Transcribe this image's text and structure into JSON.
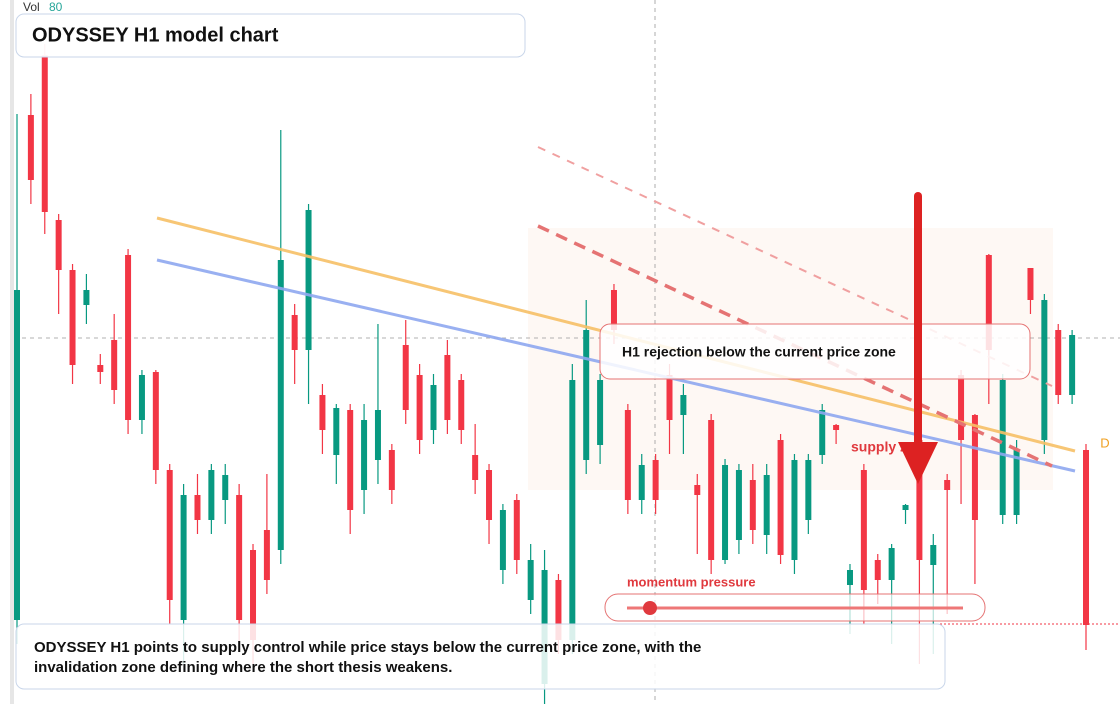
{
  "chart_data": {
    "type": "candlestick",
    "title": "ODYSSEY H1 model chart",
    "volume_label": "Vol",
    "volume_value": 80,
    "annotation": "H1 rejection below the current price zone",
    "zone_label": "supply zone",
    "momentum_label": "momentum pressure",
    "marker": "D",
    "caption": "ODYSSEY H1 points to supply control while price stays below the current price zone, with the invalidation zone defining where the short thesis weakens.",
    "up_color": "#089981",
    "down_color": "#f23645",
    "ylim": [
      0,
      704
    ],
    "open": [
      84,
      589,
      649,
      484,
      434,
      399,
      339,
      364,
      449,
      284,
      332,
      234,
      84,
      209,
      184,
      204,
      209,
      154,
      174,
      154,
      389,
      354,
      309,
      249,
      294,
      214,
      244,
      254,
      359,
      329,
      274,
      349,
      324,
      249,
      234,
      134,
      204,
      104,
      20,
      124,
      64,
      244,
      259,
      414,
      294,
      204,
      244,
      329,
      289,
      219,
      284,
      144,
      164,
      224,
      169,
      264,
      144,
      184,
      249,
      279,
      119,
      234,
      144,
      124,
      194,
      264,
      139,
      224,
      329,
      289,
      449,
      189,
      189,
      436,
      264,
      374,
      309,
      254
    ],
    "high": [
      590,
      610,
      660,
      490,
      440,
      430,
      350,
      390,
      455,
      334,
      334,
      240,
      220,
      230,
      240,
      240,
      220,
      160,
      230,
      574,
      400,
      500,
      320,
      300,
      300,
      300,
      380,
      260,
      384,
      340,
      330,
      364,
      330,
      280,
      240,
      200,
      210,
      160,
      154,
      130,
      340,
      404,
      330,
      420,
      300,
      250,
      250,
      340,
      320,
      230,
      290,
      245,
      240,
      240,
      240,
      270,
      250,
      250,
      300,
      280,
      140,
      240,
      150,
      160,
      200,
      280,
      170,
      230,
      334,
      290,
      450,
      330,
      264,
      436,
      410,
      380,
      374,
      260
    ],
    "low": [
      60,
      500,
      470,
      390,
      320,
      380,
      320,
      300,
      270,
      270,
      220,
      80,
      40,
      170,
      170,
      180,
      60,
      40,
      110,
      140,
      320,
      300,
      250,
      220,
      170,
      190,
      220,
      200,
      280,
      250,
      260,
      270,
      260,
      210,
      160,
      120,
      130,
      90,
      0,
      50,
      50,
      230,
      240,
      360,
      190,
      190,
      190,
      250,
      250,
      150,
      130,
      140,
      150,
      160,
      150,
      140,
      130,
      170,
      240,
      260,
      70,
      80,
      100,
      60,
      180,
      40,
      50,
      90,
      200,
      120,
      300,
      180,
      180,
      390,
      250,
      300,
      300,
      54
    ],
    "close": [
      414,
      524,
      492,
      434,
      339,
      414,
      332,
      314,
      284,
      329,
      234,
      104,
      209,
      184,
      234,
      229,
      84,
      64,
      124,
      444,
      354,
      494,
      274,
      296,
      194,
      284,
      294,
      214,
      294,
      264,
      319,
      284,
      274,
      224,
      184,
      194,
      144,
      144,
      134,
      64,
      324,
      374,
      324,
      374,
      204,
      239,
      204,
      284,
      309,
      209,
      144,
      239,
      234,
      174,
      229,
      149,
      244,
      244,
      294,
      274,
      134,
      114,
      124,
      156,
      199,
      144,
      159,
      214,
      264,
      184,
      354,
      324,
      254,
      404,
      404,
      309,
      369,
      79
    ]
  }
}
